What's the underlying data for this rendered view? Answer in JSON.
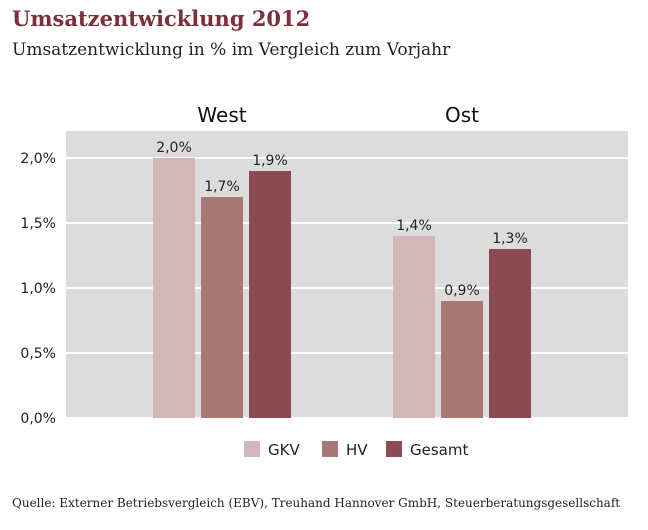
{
  "title": "Umsatzentwicklung 2012",
  "subtitle": "Umsatzentwicklung in % im Vergleich zum Vorjahr",
  "source": "Quelle: Externer Betriebsvergleich (EBV), Treuhand Hannover GmbH, Steuerberatungsgesellschaft",
  "chart_data": {
    "type": "bar",
    "categories": [
      "West",
      "Ost"
    ],
    "series": [
      {
        "name": "GKV",
        "values": [
          2.0,
          1.4
        ],
        "labels": [
          "2,0%",
          "1,4%"
        ],
        "color": "#d3b6b7"
      },
      {
        "name": "HV",
        "values": [
          1.7,
          0.9
        ],
        "labels": [
          "1,7%",
          "0,9%"
        ],
        "color": "#a87874"
      },
      {
        "name": "Gesamt",
        "values": [
          1.9,
          1.3
        ],
        "labels": [
          "1,9%",
          "1,3%"
        ],
        "color": "#8c4a53"
      }
    ],
    "yticks": [
      0.0,
      0.5,
      1.0,
      1.5,
      2.0
    ],
    "ytick_labels": [
      "0,0%",
      "0,5%",
      "1,0%",
      "1,5%",
      "2,0%"
    ],
    "ylim": [
      0,
      2.2
    ],
    "grid": true,
    "legend_position": "bottom-right",
    "plot_background": "#dcdcdc"
  }
}
